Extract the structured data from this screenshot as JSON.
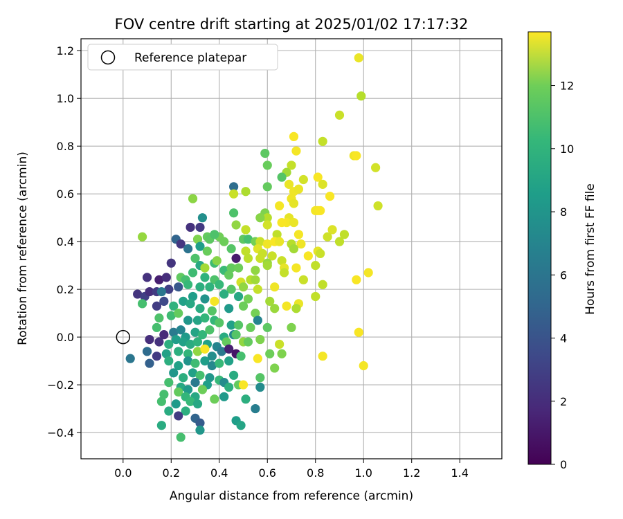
{
  "chart_data": {
    "type": "scatter",
    "title": "FOV centre drift starting at 2025/01/02 17:17:32",
    "xlabel": "Angular distance from reference (arcmin)",
    "ylabel": "Rotation from reference (arcmin)",
    "xlim": [
      -0.175,
      1.575
    ],
    "ylim": [
      -0.51,
      1.25
    ],
    "xticks": [
      0.0,
      0.2,
      0.4,
      0.6,
      0.8,
      1.0,
      1.2,
      1.4
    ],
    "yticks": [
      -0.4,
      -0.2,
      0.0,
      0.2,
      0.4,
      0.6,
      0.8,
      1.0,
      1.2
    ],
    "xtick_labels": [
      "0.0",
      "0.2",
      "0.4",
      "0.6",
      "0.8",
      "1.0",
      "1.2",
      "1.4"
    ],
    "ytick_labels": [
      "−0.4",
      "−0.2",
      "0.0",
      "0.2",
      "0.4",
      "0.6",
      "0.8",
      "1.0",
      "1.2"
    ],
    "grid": true,
    "legend": {
      "placement": "upper-left",
      "entries": [
        "Reference platepar"
      ]
    },
    "reference_point": {
      "x": 0.0,
      "y": 0.0
    },
    "colorbar": {
      "label": "Hours from first FF file",
      "colormap": "viridis",
      "range": [
        0,
        13.7
      ],
      "ticks": [
        0,
        2,
        4,
        6,
        8,
        10,
        12
      ],
      "tick_labels": [
        "0",
        "2",
        "4",
        "6",
        "8",
        "10",
        "12"
      ]
    },
    "points": [
      [
        0.98,
        1.17,
        13.3
      ],
      [
        0.99,
        1.01,
        12.2
      ],
      [
        0.9,
        0.93,
        12.6
      ],
      [
        0.71,
        0.84,
        13.6
      ],
      [
        0.83,
        0.82,
        12.5
      ],
      [
        0.72,
        0.78,
        13.5
      ],
      [
        0.96,
        0.76,
        13.4
      ],
      [
        0.97,
        0.76,
        13.6
      ],
      [
        1.05,
        0.71,
        12.8
      ],
      [
        0.59,
        0.77,
        10.2
      ],
      [
        0.6,
        0.72,
        10.5
      ],
      [
        0.7,
        0.72,
        12.5
      ],
      [
        0.68,
        0.69,
        11.8
      ],
      [
        0.81,
        0.67,
        13.6
      ],
      [
        0.66,
        0.67,
        10.0
      ],
      [
        0.75,
        0.66,
        12.8
      ],
      [
        0.69,
        0.64,
        13.3
      ],
      [
        0.83,
        0.64,
        13.0
      ],
      [
        0.6,
        0.63,
        10.4
      ],
      [
        0.71,
        0.61,
        13.4
      ],
      [
        0.73,
        0.62,
        13.3
      ],
      [
        0.46,
        0.63,
        4.9
      ],
      [
        0.46,
        0.6,
        12.6
      ],
      [
        0.51,
        0.61,
        12.0
      ],
      [
        0.29,
        0.58,
        11.3
      ],
      [
        0.86,
        0.59,
        13.6
      ],
      [
        0.7,
        0.58,
        13.4
      ],
      [
        0.71,
        0.56,
        13.2
      ],
      [
        0.65,
        0.55,
        13.5
      ],
      [
        1.06,
        0.55,
        12.7
      ],
      [
        0.8,
        0.53,
        13.5
      ],
      [
        0.81,
        0.53,
        13.5
      ],
      [
        0.82,
        0.53,
        13.6
      ],
      [
        0.59,
        0.52,
        11.0
      ],
      [
        0.6,
        0.5,
        12.2
      ],
      [
        0.57,
        0.5,
        11.2
      ],
      [
        0.46,
        0.52,
        9.8
      ],
      [
        0.33,
        0.5,
        6.8
      ],
      [
        0.69,
        0.5,
        13.2
      ],
      [
        0.68,
        0.48,
        13.5
      ],
      [
        0.71,
        0.48,
        13.3
      ],
      [
        0.66,
        0.48,
        13.6
      ],
      [
        0.6,
        0.47,
        12.8
      ],
      [
        0.47,
        0.47,
        11.4
      ],
      [
        0.28,
        0.46,
        2.0
      ],
      [
        0.32,
        0.46,
        2.3
      ],
      [
        0.51,
        0.45,
        12.5
      ],
      [
        0.87,
        0.45,
        13.0
      ],
      [
        0.64,
        0.43,
        12.4
      ],
      [
        0.73,
        0.43,
        13.5
      ],
      [
        0.92,
        0.43,
        12.4
      ],
      [
        0.35,
        0.42,
        10.4
      ],
      [
        0.08,
        0.42,
        11.5
      ],
      [
        0.22,
        0.41,
        4.4
      ],
      [
        0.31,
        0.41,
        11.0
      ],
      [
        0.36,
        0.41,
        10.2
      ],
      [
        0.4,
        0.42,
        10.7
      ],
      [
        0.38,
        0.43,
        9.8
      ],
      [
        0.42,
        0.4,
        10.6
      ],
      [
        0.5,
        0.41,
        10.2
      ],
      [
        0.52,
        0.41,
        9.6
      ],
      [
        0.55,
        0.4,
        10.8
      ],
      [
        0.57,
        0.4,
        12.6
      ],
      [
        0.6,
        0.39,
        13.4
      ],
      [
        0.63,
        0.4,
        13.6
      ],
      [
        0.65,
        0.4,
        13.3
      ],
      [
        0.7,
        0.39,
        12.2
      ],
      [
        0.74,
        0.39,
        13.4
      ],
      [
        0.85,
        0.42,
        12.7
      ],
      [
        0.9,
        0.4,
        12.4
      ],
      [
        0.24,
        0.39,
        2.2
      ],
      [
        0.27,
        0.37,
        5.2
      ],
      [
        0.32,
        0.38,
        7.6
      ],
      [
        0.35,
        0.36,
        10.5
      ],
      [
        0.45,
        0.37,
        10.0
      ],
      [
        0.51,
        0.36,
        12.4
      ],
      [
        0.56,
        0.37,
        13.1
      ],
      [
        0.58,
        0.35,
        12.6
      ],
      [
        0.62,
        0.34,
        12.6
      ],
      [
        0.71,
        0.37,
        11.8
      ],
      [
        0.77,
        0.34,
        13.6
      ],
      [
        0.81,
        0.36,
        13.2
      ],
      [
        0.82,
        0.35,
        12.6
      ],
      [
        0.2,
        0.31,
        2.1
      ],
      [
        0.3,
        0.33,
        9.8
      ],
      [
        0.38,
        0.31,
        9.4
      ],
      [
        0.39,
        0.32,
        11.2
      ],
      [
        0.47,
        0.33,
        1.0
      ],
      [
        0.52,
        0.33,
        12.3
      ],
      [
        0.57,
        0.33,
        12.6
      ],
      [
        0.6,
        0.31,
        11.5
      ],
      [
        0.66,
        0.32,
        12.6
      ],
      [
        0.72,
        0.29,
        13.5
      ],
      [
        0.67,
        0.29,
        13.2
      ],
      [
        0.8,
        0.3,
        12.4
      ],
      [
        0.32,
        0.3,
        8.2
      ],
      [
        0.34,
        0.29,
        11.8
      ],
      [
        0.42,
        0.28,
        9.3
      ],
      [
        0.45,
        0.29,
        10.4
      ],
      [
        0.48,
        0.29,
        10.6
      ],
      [
        0.55,
        0.28,
        11.4
      ],
      [
        0.6,
        0.3,
        11.8
      ],
      [
        0.67,
        0.27,
        12.5
      ],
      [
        1.02,
        0.27,
        13.5
      ],
      [
        0.1,
        0.25,
        2.0
      ],
      [
        0.15,
        0.24,
        1.2
      ],
      [
        0.18,
        0.25,
        1.8
      ],
      [
        0.24,
        0.25,
        10.3
      ],
      [
        0.26,
        0.24,
        9.6
      ],
      [
        0.29,
        0.27,
        9.4
      ],
      [
        0.34,
        0.25,
        8.8
      ],
      [
        0.38,
        0.24,
        9.8
      ],
      [
        0.44,
        0.26,
        10.4
      ],
      [
        0.49,
        0.23,
        12.8
      ],
      [
        0.53,
        0.24,
        12.2
      ],
      [
        0.55,
        0.24,
        11.7
      ],
      [
        0.75,
        0.24,
        12.6
      ],
      [
        0.97,
        0.24,
        13.6
      ],
      [
        0.19,
        0.2,
        2.6
      ],
      [
        0.23,
        0.21,
        3.8
      ],
      [
        0.27,
        0.22,
        9.2
      ],
      [
        0.32,
        0.21,
        8.6
      ],
      [
        0.36,
        0.21,
        8.8
      ],
      [
        0.4,
        0.22,
        9.2
      ],
      [
        0.45,
        0.2,
        10.0
      ],
      [
        0.5,
        0.21,
        11.4
      ],
      [
        0.56,
        0.2,
        12.5
      ],
      [
        0.63,
        0.21,
        13.4
      ],
      [
        0.83,
        0.22,
        12.4
      ],
      [
        0.06,
        0.18,
        2.1
      ],
      [
        0.09,
        0.17,
        2.6
      ],
      [
        0.11,
        0.19,
        1.8
      ],
      [
        0.14,
        0.19,
        2.4
      ],
      [
        0.16,
        0.19,
        5.4
      ],
      [
        0.29,
        0.17,
        7.6
      ],
      [
        0.34,
        0.16,
        7.0
      ],
      [
        0.38,
        0.15,
        13.5
      ],
      [
        0.42,
        0.18,
        8.6
      ],
      [
        0.48,
        0.17,
        8.2
      ],
      [
        0.52,
        0.16,
        10.8
      ],
      [
        0.61,
        0.15,
        11.8
      ],
      [
        0.68,
        0.13,
        13.5
      ],
      [
        0.73,
        0.14,
        13.3
      ],
      [
        0.8,
        0.17,
        12.4
      ],
      [
        0.08,
        0.14,
        9.6
      ],
      [
        0.14,
        0.13,
        2.5
      ],
      [
        0.17,
        0.15,
        3.1
      ],
      [
        0.21,
        0.13,
        8.8
      ],
      [
        0.25,
        0.15,
        7.8
      ],
      [
        0.28,
        0.14,
        8.2
      ],
      [
        0.32,
        0.12,
        8.4
      ],
      [
        0.37,
        0.11,
        10.0
      ],
      [
        0.44,
        0.12,
        7.4
      ],
      [
        0.5,
        0.13,
        10.6
      ],
      [
        0.55,
        0.1,
        10.8
      ],
      [
        0.63,
        0.12,
        11.6
      ],
      [
        0.72,
        0.12,
        12.0
      ],
      [
        0.15,
        0.08,
        9.8
      ],
      [
        0.2,
        0.09,
        9.4
      ],
      [
        0.23,
        0.1,
        10.4
      ],
      [
        0.27,
        0.07,
        7.2
      ],
      [
        0.31,
        0.07,
        8.0
      ],
      [
        0.34,
        0.08,
        9.0
      ],
      [
        0.38,
        0.07,
        9.1
      ],
      [
        0.4,
        0.06,
        10.0
      ],
      [
        0.45,
        0.05,
        7.8
      ],
      [
        0.48,
        0.05,
        10.0
      ],
      [
        0.53,
        0.04,
        10.5
      ],
      [
        0.56,
        0.07,
        6.2
      ],
      [
        0.6,
        0.04,
        10.2
      ],
      [
        0.14,
        0.04,
        9.6
      ],
      [
        0.17,
        0.01,
        1.7
      ],
      [
        0.21,
        0.02,
        5.6
      ],
      [
        0.24,
        0.03,
        6.2
      ],
      [
        0.26,
        0.0,
        7.4
      ],
      [
        0.3,
        0.02,
        8.0
      ],
      [
        0.33,
        0.01,
        9.0
      ],
      [
        0.36,
        0.03,
        9.8
      ],
      [
        0.42,
        0.0,
        8.4
      ],
      [
        0.46,
        0.01,
        6.4
      ],
      [
        0.5,
        -0.02,
        11.4
      ],
      [
        0.57,
        -0.01,
        11.0
      ],
      [
        0.65,
        -0.03,
        12.6
      ],
      [
        0.7,
        0.04,
        11.0
      ],
      [
        0.98,
        0.02,
        13.6
      ],
      [
        0.11,
        -0.01,
        1.8
      ],
      [
        0.15,
        -0.02,
        2.0
      ],
      [
        0.19,
        -0.03,
        8.6
      ],
      [
        0.22,
        -0.01,
        7.6
      ],
      [
        0.25,
        -0.02,
        7.8
      ],
      [
        0.28,
        -0.03,
        8.4
      ],
      [
        0.31,
        -0.02,
        8.8
      ],
      [
        0.35,
        -0.03,
        7.8
      ],
      [
        0.39,
        -0.04,
        6.2
      ],
      [
        0.43,
        -0.02,
        10.4
      ],
      [
        0.47,
        0.01,
        10.0
      ],
      [
        0.52,
        -0.02,
        10.4
      ],
      [
        0.61,
        -0.07,
        10.6
      ],
      [
        0.66,
        -0.07,
        11.0
      ],
      [
        0.03,
        -0.09,
        5.4
      ],
      [
        0.1,
        -0.06,
        4.8
      ],
      [
        0.14,
        -0.08,
        2.4
      ],
      [
        0.18,
        -0.07,
        7.8
      ],
      [
        0.23,
        -0.06,
        8.6
      ],
      [
        0.27,
        -0.07,
        9.0
      ],
      [
        0.31,
        -0.06,
        11.4
      ],
      [
        0.34,
        -0.05,
        13.6
      ],
      [
        0.37,
        -0.08,
        6.8
      ],
      [
        0.41,
        -0.06,
        5.6
      ],
      [
        0.44,
        -0.05,
        1.2
      ],
      [
        0.47,
        -0.07,
        0.8
      ],
      [
        0.49,
        -0.08,
        9.6
      ],
      [
        0.56,
        -0.09,
        13.6
      ],
      [
        0.83,
        -0.08,
        13.5
      ],
      [
        0.11,
        -0.11,
        4.2
      ],
      [
        0.19,
        -0.1,
        8.6
      ],
      [
        0.23,
        -0.12,
        7.8
      ],
      [
        0.27,
        -0.1,
        7.0
      ],
      [
        0.3,
        -0.11,
        9.4
      ],
      [
        0.34,
        -0.1,
        7.6
      ],
      [
        0.37,
        -0.12,
        6.4
      ],
      [
        0.4,
        -0.11,
        9.2
      ],
      [
        0.44,
        -0.1,
        7.8
      ],
      [
        0.63,
        -0.13,
        11.0
      ],
      [
        1.0,
        -0.12,
        13.5
      ],
      [
        0.21,
        -0.15,
        7.2
      ],
      [
        0.25,
        -0.17,
        8.6
      ],
      [
        0.29,
        -0.15,
        7.8
      ],
      [
        0.32,
        -0.16,
        9.6
      ],
      [
        0.36,
        -0.17,
        7.2
      ],
      [
        0.4,
        -0.18,
        9.2
      ],
      [
        0.46,
        -0.16,
        8.4
      ],
      [
        0.19,
        -0.19,
        9.6
      ],
      [
        0.24,
        -0.21,
        8.2
      ],
      [
        0.27,
        -0.22,
        7.4
      ],
      [
        0.3,
        -0.19,
        5.6
      ],
      [
        0.35,
        -0.2,
        7.6
      ],
      [
        0.42,
        -0.19,
        6.6
      ],
      [
        0.44,
        -0.21,
        8.6
      ],
      [
        0.48,
        -0.2,
        10.4
      ],
      [
        0.5,
        -0.2,
        13.6
      ],
      [
        0.57,
        -0.17,
        10.0
      ],
      [
        0.57,
        -0.21,
        6.6
      ],
      [
        0.17,
        -0.24,
        9.6
      ],
      [
        0.23,
        -0.23,
        10.4
      ],
      [
        0.26,
        -0.25,
        9.0
      ],
      [
        0.3,
        -0.25,
        8.2
      ],
      [
        0.33,
        -0.22,
        10.6
      ],
      [
        0.38,
        -0.26,
        10.6
      ],
      [
        0.42,
        -0.25,
        7.4
      ],
      [
        0.51,
        -0.26,
        8.6
      ],
      [
        0.16,
        -0.27,
        9.6
      ],
      [
        0.22,
        -0.28,
        7.4
      ],
      [
        0.28,
        -0.27,
        9.2
      ],
      [
        0.31,
        -0.28,
        8.2
      ],
      [
        0.55,
        -0.3,
        5.8
      ],
      [
        0.19,
        -0.31,
        8.4
      ],
      [
        0.26,
        -0.31,
        8.6
      ],
      [
        0.23,
        -0.33,
        2.4
      ],
      [
        0.3,
        -0.34,
        4.4
      ],
      [
        0.47,
        -0.35,
        7.6
      ],
      [
        0.49,
        -0.37,
        8.0
      ],
      [
        0.16,
        -0.37,
        8.4
      ],
      [
        0.32,
        -0.36,
        4.0
      ],
      [
        0.32,
        -0.39,
        7.2
      ],
      [
        0.24,
        -0.42,
        9.6
      ]
    ]
  }
}
